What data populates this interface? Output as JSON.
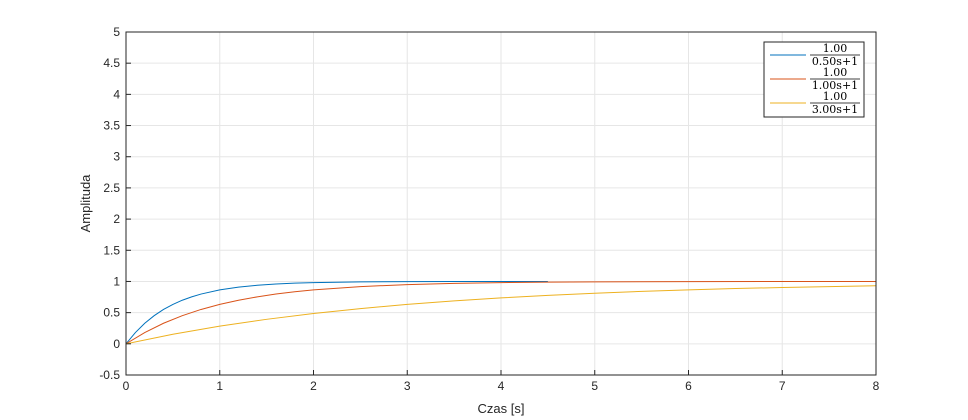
{
  "chart_data": {
    "type": "line",
    "title": "",
    "xlabel": "Czas [s]",
    "ylabel": "Amplituda",
    "xlim": [
      0,
      8
    ],
    "ylim": [
      -0.5,
      5
    ],
    "grid": true,
    "legend_position": "top-right",
    "x_ticks": [
      "0",
      "1",
      "2",
      "3",
      "4",
      "5",
      "6",
      "7",
      "8"
    ],
    "y_ticks": [
      "-0.5",
      "0",
      "0.5",
      "1",
      "1.5",
      "2",
      "2.5",
      "3",
      "3.5",
      "4",
      "4.5",
      "5"
    ],
    "series": [
      {
        "num": "1.00",
        "den": "0.50s+1",
        "color": "#0072BD",
        "x": [
          0,
          0.1,
          0.2,
          0.3,
          0.4,
          0.5,
          0.6,
          0.7,
          0.8,
          1.0,
          1.2,
          1.4,
          1.6,
          1.8,
          2.0,
          2.5,
          3.0,
          3.5,
          4.0,
          4.5
        ],
        "y": [
          0,
          0.181,
          0.33,
          0.451,
          0.551,
          0.632,
          0.699,
          0.753,
          0.798,
          0.865,
          0.909,
          0.939,
          0.959,
          0.973,
          0.982,
          0.993,
          0.998,
          0.999,
          1.0,
          1.0
        ]
      },
      {
        "num": "1.00",
        "den": "1.00s+1",
        "color": "#D95319",
        "x": [
          0,
          0.2,
          0.4,
          0.6,
          0.8,
          1.0,
          1.2,
          1.4,
          1.6,
          1.8,
          2.0,
          2.5,
          3.0,
          3.5,
          4.0,
          4.5,
          5.0,
          6.0,
          7.0,
          8.0
        ],
        "y": [
          0,
          0.181,
          0.33,
          0.451,
          0.551,
          0.632,
          0.699,
          0.753,
          0.798,
          0.835,
          0.865,
          0.918,
          0.95,
          0.97,
          0.982,
          0.989,
          0.993,
          0.998,
          0.999,
          1.0
        ]
      },
      {
        "num": "1.00",
        "den": "3.00s+1",
        "color": "#EDB120",
        "x": [
          0,
          0.5,
          1.0,
          1.5,
          2.0,
          2.5,
          3.0,
          3.5,
          4.0,
          4.5,
          5.0,
          5.5,
          6.0,
          6.5,
          7.0,
          7.5,
          8.0
        ],
        "y": [
          0,
          0.154,
          0.283,
          0.393,
          0.487,
          0.565,
          0.632,
          0.689,
          0.736,
          0.777,
          0.811,
          0.84,
          0.865,
          0.886,
          0.903,
          0.918,
          0.931
        ]
      }
    ]
  }
}
